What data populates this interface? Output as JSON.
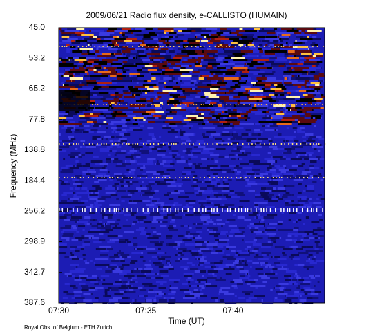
{
  "chart_data": {
    "type": "spectrogram",
    "title": "2009/06/21  Radio flux density, e-CALLISTO (HUMAIN)",
    "xlabel": "Time (UT)",
    "ylabel": "Frequency (MHz)",
    "footer": "Royal Obs. of Belgium - ETH Zurich",
    "xlim": [
      "07:30",
      "07:45:15"
    ],
    "xticks": [
      "07:30",
      "07:35",
      "07:40"
    ],
    "yticks": [
      {
        "value": 45,
        "label": "45.0"
      },
      {
        "value": 53.2,
        "label": "53.2"
      },
      {
        "value": 65.2,
        "label": "65.2"
      },
      {
        "value": 77.8,
        "label": "77.8"
      },
      {
        "value": 138.8,
        "label": "138.8"
      },
      {
        "value": 184.4,
        "label": "184.4"
      },
      {
        "value": 256.2,
        "label": "256.2"
      },
      {
        "value": 298.9,
        "label": "298.9"
      },
      {
        "value": 342.7,
        "label": "342.7"
      },
      {
        "value": 387.6,
        "label": "387.6"
      }
    ]
  }
}
